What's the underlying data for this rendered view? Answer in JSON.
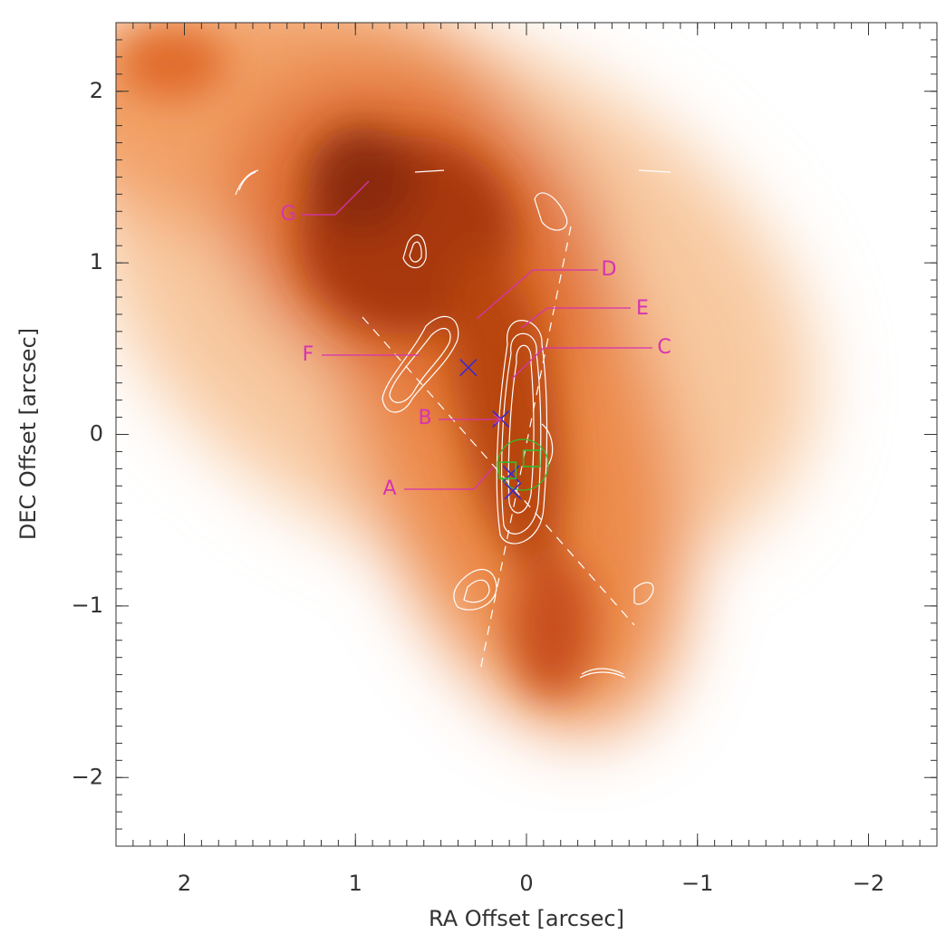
{
  "chart_data": {
    "type": "scatter",
    "xlabel": "RA Offset [arcsec]",
    "ylabel": "DEC Offset [arcsec]",
    "xlim": [
      2.4,
      -2.4
    ],
    "ylim": [
      -2.4,
      2.4
    ],
    "xticks": [
      2,
      1,
      0,
      {
        "value": -1,
        "label": "−1"
      },
      {
        "value": -2,
        "label": "−2"
      }
    ],
    "yticks": [
      {
        "value": -2,
        "label": "−2"
      },
      {
        "value": -1,
        "label": "−1"
      },
      0,
      1,
      2
    ],
    "series": [
      {
        "color": "#3a2ad0",
        "marker": "x",
        "x": [
          0.34,
          0.15,
          0.09,
          0.08
        ],
        "y": [
          0.39,
          0.09,
          -0.23,
          -0.33
        ]
      },
      {
        "color": "#30c030",
        "marker": "square",
        "x": [
          0.11,
          -0.03
        ],
        "y": [
          -0.21,
          -0.14
        ]
      }
    ],
    "annotations": [
      "G",
      "F",
      "D",
      "E",
      "C",
      "B",
      "A"
    ]
  }
}
